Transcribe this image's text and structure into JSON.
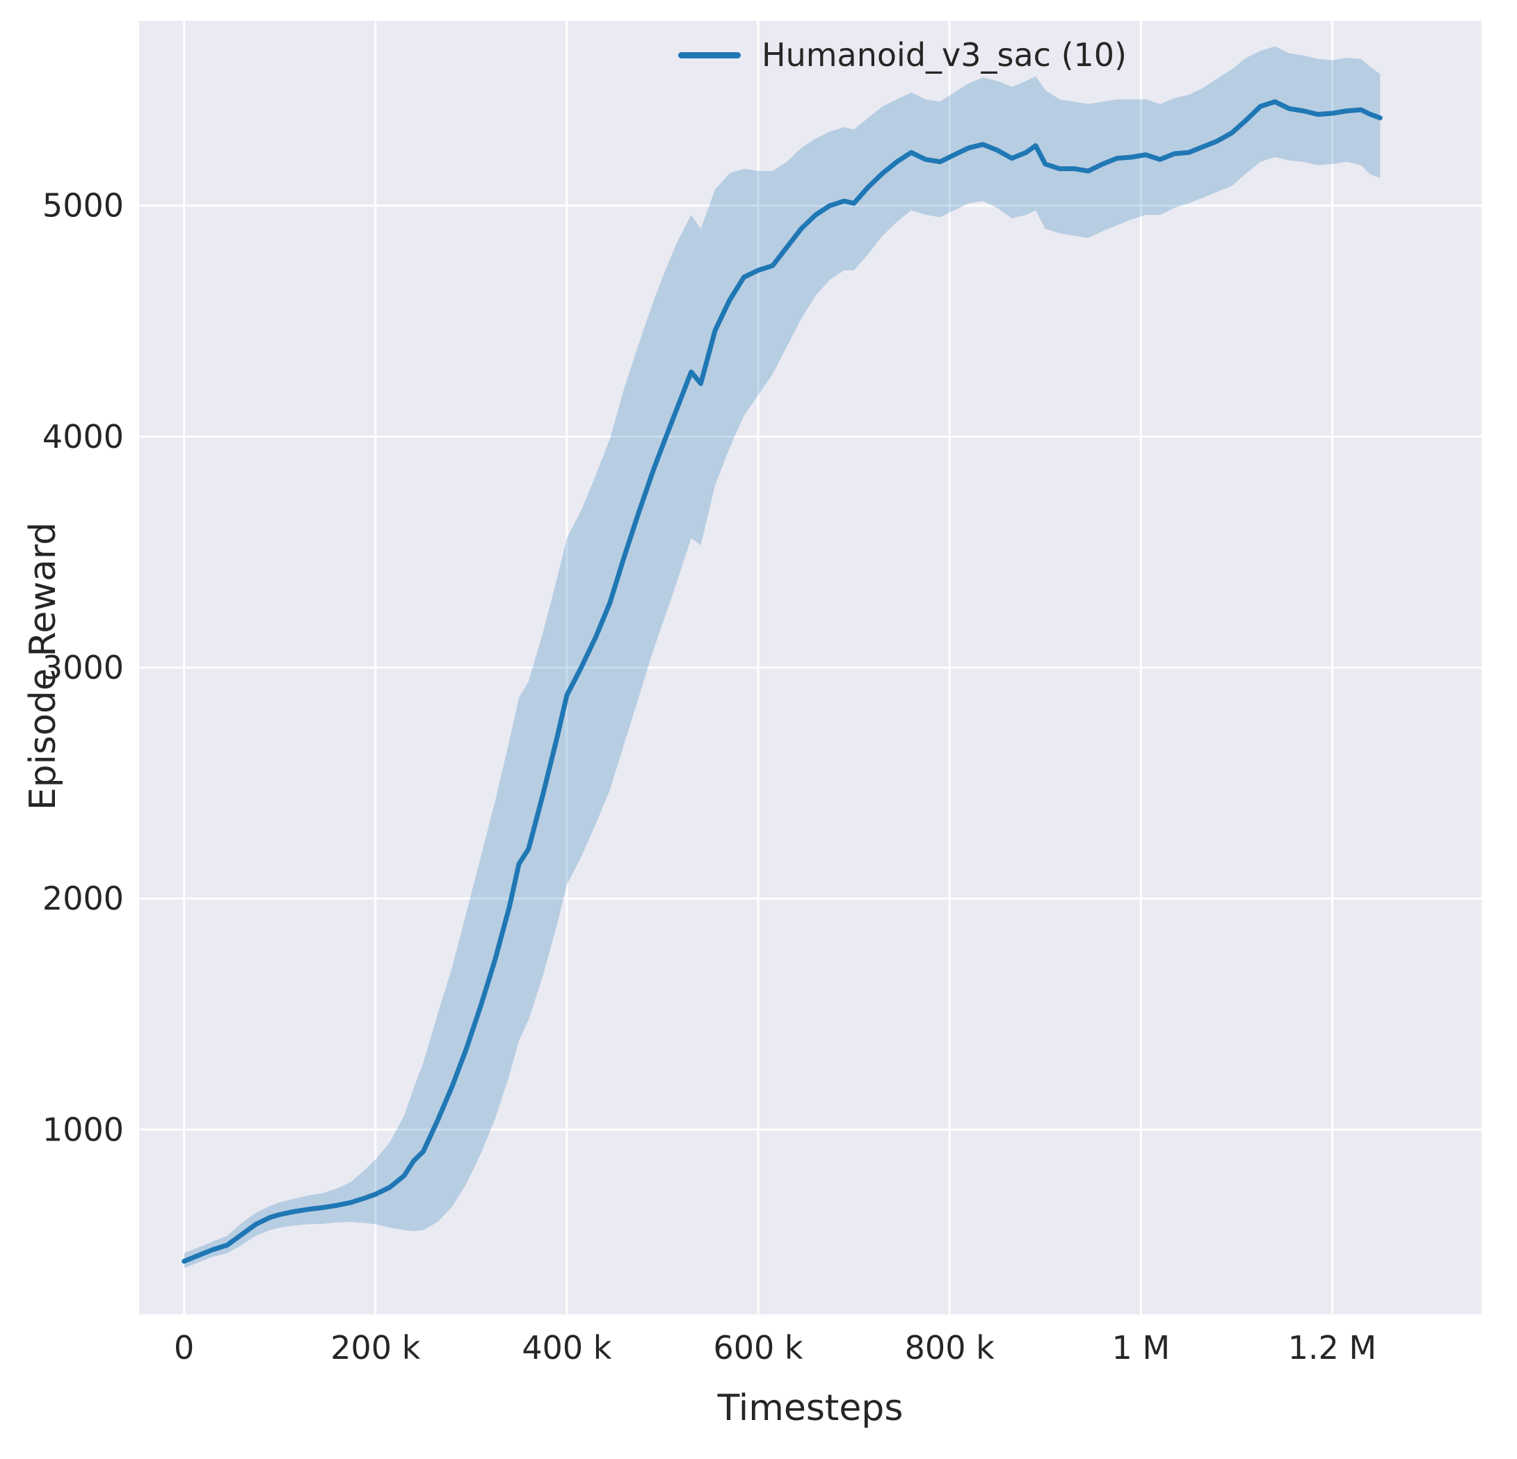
{
  "figure": {
    "background": "#ffffff",
    "plot_background": "#eaeaf2",
    "grid_color": "#ffffff",
    "text_color": "#262626"
  },
  "chart_data": {
    "type": "line",
    "title": "",
    "xlabel": "Timesteps",
    "ylabel": "Episode Reward",
    "xlim": [
      -47000,
      1356000
    ],
    "ylim": [
      200,
      5800
    ],
    "grid": true,
    "legend": {
      "position": "upper right",
      "entries": [
        {
          "label": "Humanoid_v3_sac (10)",
          "color": "#1f77b4"
        }
      ]
    },
    "xticks": [
      {
        "value": 0,
        "label": "0"
      },
      {
        "value": 200000,
        "label": "200 k"
      },
      {
        "value": 400000,
        "label": "400 k"
      },
      {
        "value": 600000,
        "label": "600 k"
      },
      {
        "value": 800000,
        "label": "800 k"
      },
      {
        "value": 1000000,
        "label": "1 M"
      },
      {
        "value": 1200000,
        "label": "1.2 M"
      }
    ],
    "yticks": [
      {
        "value": 1000,
        "label": "1000"
      },
      {
        "value": 2000,
        "label": "2000"
      },
      {
        "value": 3000,
        "label": "3000"
      },
      {
        "value": 4000,
        "label": "4000"
      },
      {
        "value": 5000,
        "label": "5000"
      }
    ],
    "series": [
      {
        "name": "Humanoid_v3_sac (10)",
        "color": "#1f77b4",
        "band_color": "#1f77b4",
        "band_opacity": 0.25,
        "point_format": [
          "x",
          "mean",
          "lower",
          "upper"
        ],
        "points": [
          [
            0,
            430,
            400,
            465
          ],
          [
            15000,
            455,
            425,
            490
          ],
          [
            30000,
            480,
            450,
            515
          ],
          [
            45000,
            500,
            465,
            540
          ],
          [
            60000,
            545,
            500,
            595
          ],
          [
            75000,
            590,
            540,
            640
          ],
          [
            90000,
            620,
            565,
            670
          ],
          [
            100000,
            632,
            575,
            685
          ],
          [
            115000,
            645,
            585,
            700
          ],
          [
            130000,
            655,
            590,
            715
          ],
          [
            145000,
            662,
            592,
            725
          ],
          [
            160000,
            672,
            598,
            745
          ],
          [
            175000,
            685,
            600,
            775
          ],
          [
            190000,
            705,
            595,
            830
          ],
          [
            200000,
            720,
            590,
            870
          ],
          [
            215000,
            750,
            575,
            945
          ],
          [
            230000,
            800,
            565,
            1060
          ],
          [
            240000,
            865,
            560,
            1180
          ],
          [
            250000,
            905,
            565,
            1290
          ],
          [
            265000,
            1040,
            600,
            1500
          ],
          [
            280000,
            1185,
            665,
            1700
          ],
          [
            295000,
            1350,
            765,
            1940
          ],
          [
            310000,
            1535,
            895,
            2180
          ],
          [
            325000,
            1735,
            1045,
            2420
          ],
          [
            340000,
            1965,
            1235,
            2685
          ],
          [
            350000,
            2150,
            1385,
            2870
          ],
          [
            360000,
            2215,
            1475,
            2940
          ],
          [
            375000,
            2450,
            1665,
            3150
          ],
          [
            390000,
            2700,
            1890,
            3390
          ],
          [
            400000,
            2880,
            2060,
            3560
          ],
          [
            415000,
            3000,
            2180,
            3680
          ],
          [
            430000,
            3130,
            2320,
            3830
          ],
          [
            445000,
            3280,
            2470,
            3990
          ],
          [
            460000,
            3480,
            2670,
            4210
          ],
          [
            475000,
            3670,
            2870,
            4400
          ],
          [
            490000,
            3850,
            3070,
            4580
          ],
          [
            500000,
            3960,
            3190,
            4690
          ],
          [
            515000,
            4120,
            3370,
            4840
          ],
          [
            530000,
            4280,
            3560,
            4960
          ],
          [
            540000,
            4230,
            3530,
            4900
          ],
          [
            555000,
            4460,
            3790,
            5070
          ],
          [
            570000,
            4590,
            3950,
            5140
          ],
          [
            585000,
            4690,
            4090,
            5160
          ],
          [
            600000,
            4720,
            4180,
            5150
          ],
          [
            615000,
            4740,
            4270,
            5150
          ],
          [
            630000,
            4820,
            4390,
            5190
          ],
          [
            645000,
            4900,
            4510,
            5250
          ],
          [
            660000,
            4960,
            4610,
            5290
          ],
          [
            675000,
            5000,
            4680,
            5320
          ],
          [
            690000,
            5020,
            4720,
            5340
          ],
          [
            700000,
            5010,
            4720,
            5330
          ],
          [
            715000,
            5080,
            4790,
            5380
          ],
          [
            730000,
            5140,
            4870,
            5430
          ],
          [
            745000,
            5190,
            4930,
            5460
          ],
          [
            760000,
            5230,
            4980,
            5490
          ],
          [
            775000,
            5200,
            4960,
            5460
          ],
          [
            790000,
            5190,
            4950,
            5450
          ],
          [
            805000,
            5220,
            4980,
            5490
          ],
          [
            820000,
            5250,
            5010,
            5530
          ],
          [
            835000,
            5265,
            5020,
            5555
          ],
          [
            850000,
            5240,
            4990,
            5540
          ],
          [
            865000,
            5205,
            4945,
            5515
          ],
          [
            880000,
            5230,
            4960,
            5540
          ],
          [
            890000,
            5260,
            4980,
            5560
          ],
          [
            900000,
            5180,
            4900,
            5500
          ],
          [
            915000,
            5160,
            4880,
            5460
          ],
          [
            930000,
            5160,
            4870,
            5450
          ],
          [
            945000,
            5150,
            4860,
            5440
          ],
          [
            960000,
            5180,
            4890,
            5450
          ],
          [
            975000,
            5205,
            4915,
            5460
          ],
          [
            990000,
            5210,
            4940,
            5460
          ],
          [
            1005000,
            5220,
            4960,
            5460
          ],
          [
            1020000,
            5200,
            4960,
            5440
          ],
          [
            1035000,
            5225,
            4990,
            5465
          ],
          [
            1050000,
            5230,
            5010,
            5480
          ],
          [
            1065000,
            5255,
            5035,
            5510
          ],
          [
            1080000,
            5280,
            5060,
            5550
          ],
          [
            1095000,
            5315,
            5085,
            5590
          ],
          [
            1110000,
            5370,
            5140,
            5640
          ],
          [
            1125000,
            5430,
            5190,
            5670
          ],
          [
            1140000,
            5450,
            5210,
            5690
          ],
          [
            1155000,
            5420,
            5195,
            5660
          ],
          [
            1170000,
            5410,
            5190,
            5650
          ],
          [
            1185000,
            5395,
            5175,
            5635
          ],
          [
            1200000,
            5400,
            5180,
            5630
          ],
          [
            1215000,
            5410,
            5190,
            5640
          ],
          [
            1230000,
            5415,
            5175,
            5635
          ],
          [
            1240000,
            5395,
            5135,
            5600
          ],
          [
            1250000,
            5380,
            5120,
            5570
          ]
        ]
      }
    ]
  }
}
